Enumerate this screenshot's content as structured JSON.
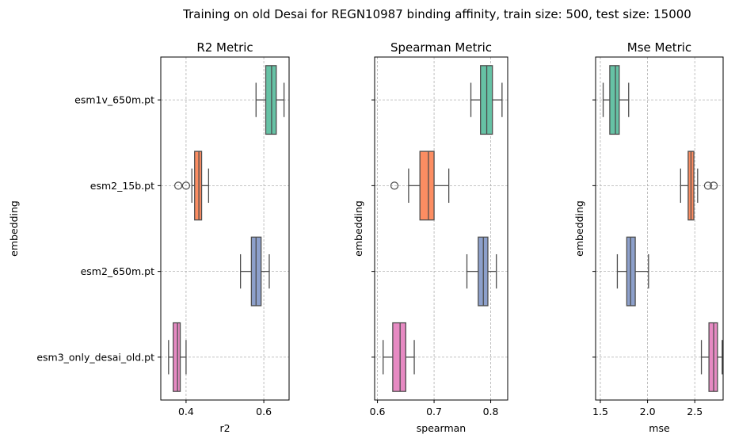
{
  "suptitle": "Training on old Desai for REGN10987 binding affinity, train size: 500, test size: 15000",
  "chart_data": [
    {
      "type": "box",
      "orientation": "horizontal",
      "title": "R2 Metric",
      "xlabel": "r2",
      "ylabel": "embedding",
      "categories": [
        "esm1v_650m.pt",
        "esm2_15b.pt",
        "esm2_650m.pt",
        "esm3_only_desai_old.pt"
      ],
      "colors": [
        "#66c2a5",
        "#fc8d62",
        "#8da0cb",
        "#e78ac3"
      ],
      "xlim": [
        0.335,
        0.665
      ],
      "xticks": [
        0.4,
        0.6
      ],
      "xtick_labels": [
        "0.4",
        "0.6"
      ],
      "show_y_tick_labels": true,
      "grid": true,
      "boxes": [
        {
          "whislo": 0.58,
          "q1": 0.605,
          "med": 0.62,
          "q3": 0.632,
          "whishi": 0.652,
          "fliers": []
        },
        {
          "whislo": 0.415,
          "q1": 0.422,
          "med": 0.433,
          "q3": 0.44,
          "whishi": 0.458,
          "fliers": [
            0.38,
            0.4
          ]
        },
        {
          "whislo": 0.54,
          "q1": 0.568,
          "med": 0.58,
          "q3": 0.593,
          "whishi": 0.614,
          "fliers": []
        },
        {
          "whislo": 0.355,
          "q1": 0.367,
          "med": 0.378,
          "q3": 0.385,
          "whishi": 0.4,
          "fliers": []
        }
      ]
    },
    {
      "type": "box",
      "orientation": "horizontal",
      "title": "Spearman Metric",
      "xlabel": "spearman",
      "ylabel": "embedding",
      "categories": [
        "esm1v_650m.pt",
        "esm2_15b.pt",
        "esm2_650m.pt",
        "esm3_only_desai_old.pt"
      ],
      "colors": [
        "#66c2a5",
        "#fc8d62",
        "#8da0cb",
        "#e78ac3"
      ],
      "xlim": [
        0.595,
        0.83
      ],
      "xticks": [
        0.6,
        0.7,
        0.8
      ],
      "xtick_labels": [
        "0.6",
        "0.7",
        "0.8"
      ],
      "show_y_tick_labels": false,
      "grid": true,
      "boxes": [
        {
          "whislo": 0.765,
          "q1": 0.782,
          "med": 0.793,
          "q3": 0.803,
          "whishi": 0.82,
          "fliers": []
        },
        {
          "whislo": 0.655,
          "q1": 0.675,
          "med": 0.69,
          "q3": 0.7,
          "whishi": 0.726,
          "fliers": [
            0.63
          ]
        },
        {
          "whislo": 0.758,
          "q1": 0.778,
          "med": 0.787,
          "q3": 0.795,
          "whishi": 0.81,
          "fliers": []
        },
        {
          "whislo": 0.61,
          "q1": 0.627,
          "med": 0.64,
          "q3": 0.65,
          "whishi": 0.665,
          "fliers": []
        }
      ]
    },
    {
      "type": "box",
      "orientation": "horizontal",
      "title": "Mse Metric",
      "xlabel": "mse",
      "ylabel": "embedding",
      "categories": [
        "esm1v_650m.pt",
        "esm2_15b.pt",
        "esm2_650m.pt",
        "esm3_only_desai_old.pt"
      ],
      "colors": [
        "#66c2a5",
        "#fc8d62",
        "#8da0cb",
        "#e78ac3"
      ],
      "xlim": [
        1.45,
        2.8
      ],
      "xticks": [
        1.5,
        2.0,
        2.5
      ],
      "xtick_labels": [
        "1.5",
        "2.0",
        "2.5"
      ],
      "show_y_tick_labels": false,
      "grid": true,
      "boxes": [
        {
          "whislo": 1.53,
          "q1": 1.6,
          "med": 1.66,
          "q3": 1.7,
          "whishi": 1.8,
          "fliers": []
        },
        {
          "whislo": 2.35,
          "q1": 2.43,
          "med": 2.46,
          "q3": 2.49,
          "whishi": 2.53,
          "fliers": [
            2.64,
            2.7
          ]
        },
        {
          "whislo": 1.68,
          "q1": 1.78,
          "med": 1.82,
          "q3": 1.87,
          "whishi": 2.01,
          "fliers": []
        },
        {
          "whislo": 2.57,
          "q1": 2.65,
          "med": 2.7,
          "q3": 2.74,
          "whishi": 2.79,
          "fliers": []
        }
      ]
    }
  ]
}
